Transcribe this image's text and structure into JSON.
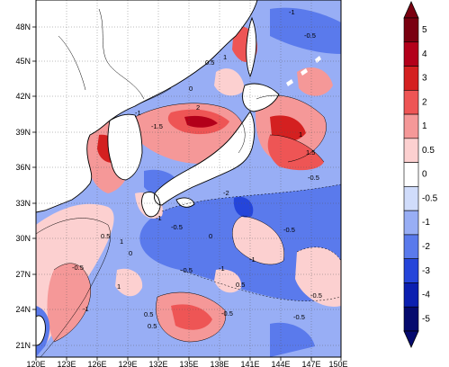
{
  "map": {
    "lon_range": [
      120,
      150
    ],
    "lat_range": [
      20,
      50
    ],
    "x_ticks": [
      "120E",
      "123E",
      "126E",
      "129E",
      "132E",
      "135E",
      "138E",
      "141E",
      "144E",
      "147E",
      "150E"
    ],
    "y_ticks": [
      "21N",
      "24N",
      "27N",
      "30N",
      "33N",
      "36N",
      "39N",
      "42N",
      "45N",
      "48N"
    ],
    "gridlines": true,
    "contour_labels": [
      "-1",
      "-0.5",
      "0.5",
      "1",
      "2",
      "0",
      "-1.5",
      "1.5",
      "-2",
      "-0.5",
      "-1",
      "0.5",
      "0",
      "1",
      "-0.5",
      "-1",
      "-0.5",
      "-1",
      "0.5",
      "0.5",
      "-0.5",
      "-1",
      "-0.5",
      "1",
      "-0.5",
      "0.5",
      "0",
      "-0.5",
      "-1",
      "-0.5",
      "1"
    ]
  },
  "colorbar": {
    "levels": [
      "5",
      "4",
      "3",
      "2",
      "1",
      "0.5",
      "0",
      "-0.5",
      "-1",
      "-2",
      "-3",
      "-4",
      "-5"
    ],
    "colors": [
      "#7a0010",
      "#b3001a",
      "#d42020",
      "#ee5555",
      "#f59898",
      "#fcd0d0",
      "#ffffff",
      "#d0dcfb",
      "#98aef5",
      "#5a7aec",
      "#2545da",
      "#0b1fb0",
      "#050a6e"
    ],
    "extend": "both"
  }
}
